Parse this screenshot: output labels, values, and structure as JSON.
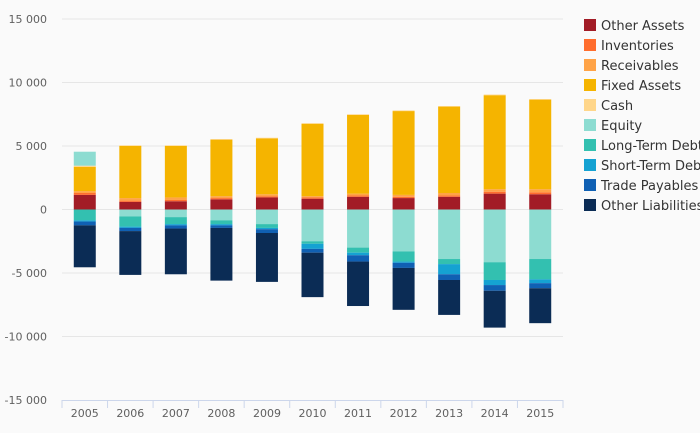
{
  "chart_data": {
    "type": "bar",
    "stacked": true,
    "categories": [
      "2005",
      "2006",
      "2007",
      "2008",
      "2009",
      "2010",
      "2011",
      "2012",
      "2013",
      "2014",
      "2015"
    ],
    "ylim": [
      -15000,
      15000
    ],
    "yticks": [
      15000,
      10000,
      5000,
      0,
      -5000,
      -10000,
      -15000
    ],
    "ytick_labels": [
      "15 000",
      "10 000",
      "5 000",
      "0",
      "-5 000",
      "-10 000",
      "-15 000"
    ],
    "grid": true,
    "legend_position": "right",
    "series": [
      {
        "name": "Other Assets",
        "color": "#a21c26",
        "values": [
          1150,
          600,
          650,
          800,
          950,
          850,
          1000,
          900,
          1000,
          1250,
          1200
        ]
      },
      {
        "name": "Inventories",
        "color": "#ff6d2e",
        "values": [
          150,
          100,
          100,
          100,
          100,
          100,
          100,
          100,
          100,
          150,
          150
        ]
      },
      {
        "name": "Receivables",
        "color": "#ffa347",
        "values": [
          150,
          200,
          200,
          150,
          150,
          100,
          150,
          150,
          200,
          200,
          250
        ]
      },
      {
        "name": "Fixed Assets",
        "color": "#f5b400",
        "values": [
          1900,
          4100,
          4050,
          4450,
          4400,
          5700,
          6200,
          6600,
          6800,
          7400,
          7050
        ]
      },
      {
        "name": "Cash",
        "color": "#ffd68a",
        "values": [
          100,
          50,
          50,
          50,
          50,
          50,
          50,
          50,
          50,
          50,
          50
        ]
      },
      {
        "name": "Equity",
        "color": "#8ddcd1",
        "values": [
          1100,
          -550,
          -600,
          -850,
          -1150,
          -2500,
          -3000,
          -3300,
          -3900,
          -4150,
          -3900
        ]
      },
      {
        "name": "Long-Term Debt",
        "color": "#33c0b0",
        "values": [
          -850,
          -800,
          -550,
          -300,
          -300,
          -200,
          -400,
          -800,
          -400,
          -1400,
          -1600
        ]
      },
      {
        "name": "Short-Term Debt",
        "color": "#15a2d2",
        "values": [
          -100,
          -100,
          -100,
          -100,
          -100,
          -400,
          -200,
          -100,
          -800,
          -400,
          -300
        ]
      },
      {
        "name": "Trade Payables",
        "color": "#1060b3",
        "values": [
          -300,
          -250,
          -250,
          -200,
          -300,
          -300,
          -500,
          -400,
          -450,
          -450,
          -400
        ]
      },
      {
        "name": "Other Liabilities",
        "color": "#0b2c55",
        "values": [
          -3300,
          -3450,
          -3600,
          -4150,
          -3850,
          -3500,
          -3500,
          -3300,
          -2750,
          -2900,
          -2750
        ]
      }
    ]
  }
}
